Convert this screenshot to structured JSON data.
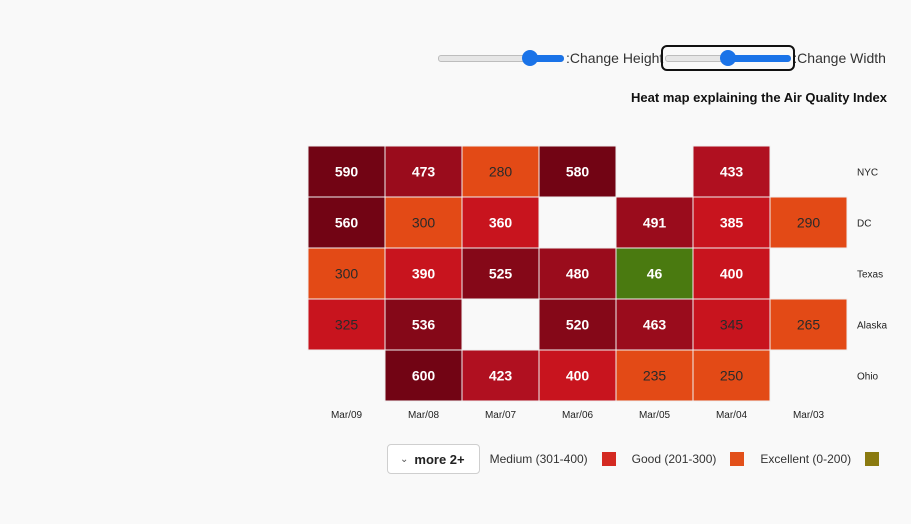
{
  "controls": {
    "height_label": ":Change Height",
    "width_label": ":Change Width",
    "height_value": 0.75,
    "width_value": 0.5
  },
  "legend": {
    "more_button": "more 2+",
    "items": [
      {
        "label": "Medium (301-400)",
        "color": "#d42a22"
      },
      {
        "label": "Good (201-300)",
        "color": "#e2501a"
      },
      {
        "label": "Excellent (0-200)",
        "color": "#8a7a10"
      }
    ]
  },
  "chart_data": {
    "type": "heatmap",
    "title": "Heat map explaining the Air Quality Index",
    "x_categories": [
      "Mar/09",
      "Mar/08",
      "Mar/07",
      "Mar/06",
      "Mar/05",
      "Mar/04",
      "Mar/03"
    ],
    "y_categories": [
      "NYC",
      "DC",
      "Texas",
      "Alaska",
      "Ohio"
    ],
    "values": [
      [
        590,
        473,
        280,
        580,
        null,
        433,
        null
      ],
      [
        560,
        300,
        360,
        null,
        491,
        385,
        290
      ],
      [
        300,
        390,
        525,
        480,
        46,
        400,
        null
      ],
      [
        325,
        536,
        null,
        520,
        463,
        345,
        265
      ],
      [
        null,
        600,
        423,
        400,
        235,
        250,
        null
      ]
    ],
    "color_scale": [
      {
        "max": 200,
        "color": "#4a7a10",
        "text": "#ffffff"
      },
      {
        "max": 300,
        "color": "#e34a16",
        "text": "#2a2a2a"
      },
      {
        "max": 400,
        "color": "#c8141e",
        "text": "#ffffff"
      },
      {
        "max": 450,
        "color": "#b01020",
        "text": "#ffffff"
      },
      {
        "max": 500,
        "color": "#9a0c1c",
        "text": "#ffffff"
      },
      {
        "max": 550,
        "color": "#850818",
        "text": "#ffffff"
      },
      {
        "max": 1000,
        "color": "#720414",
        "text": "#ffffff"
      }
    ],
    "dark_text_values": [
      280,
      300,
      290,
      345,
      325,
      265,
      235,
      250
    ]
  }
}
